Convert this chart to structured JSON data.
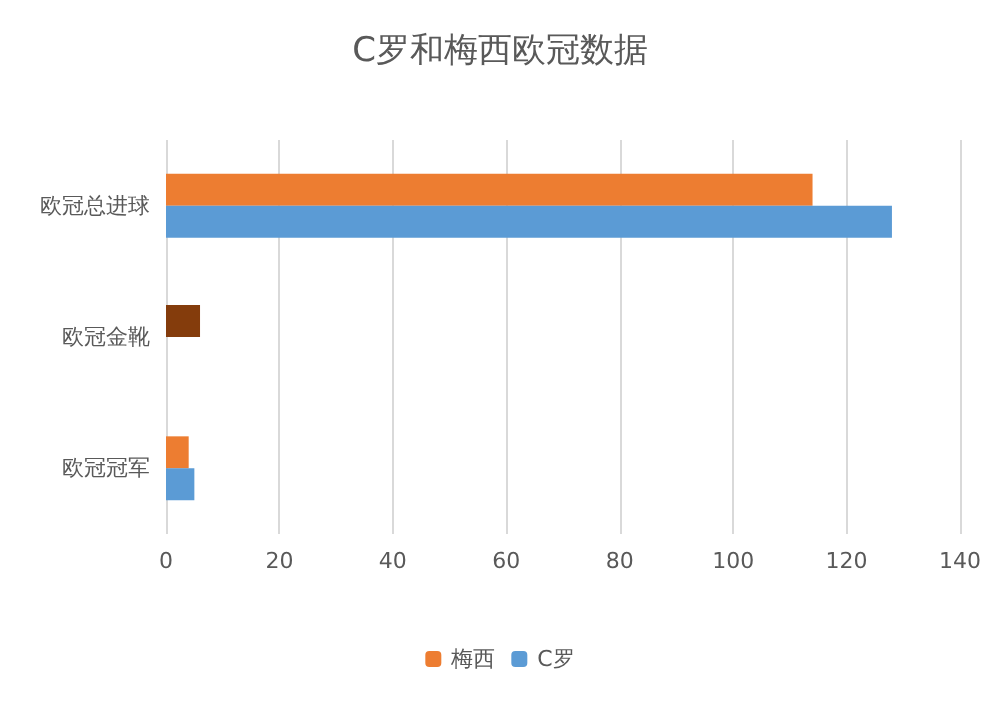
{
  "chart_data": {
    "type": "bar",
    "orientation": "horizontal",
    "title": "C罗和梅西欧冠数据",
    "categories": [
      "欧冠总进球",
      "欧冠金靴",
      "欧冠冠军"
    ],
    "series": [
      {
        "name": "梅西",
        "color": "#ed7d31",
        "colors": [
          "#ed7d31",
          "#843c0c",
          "#ed7d31"
        ],
        "values": [
          114,
          6,
          4
        ]
      },
      {
        "name": "C罗",
        "color": "#5b9bd5",
        "values": [
          128,
          null,
          5
        ]
      }
    ],
    "xlim": [
      0,
      140
    ],
    "xticks": [
      0,
      20,
      40,
      60,
      80,
      100,
      120,
      140
    ],
    "grid": "x",
    "legend": "bottom"
  }
}
